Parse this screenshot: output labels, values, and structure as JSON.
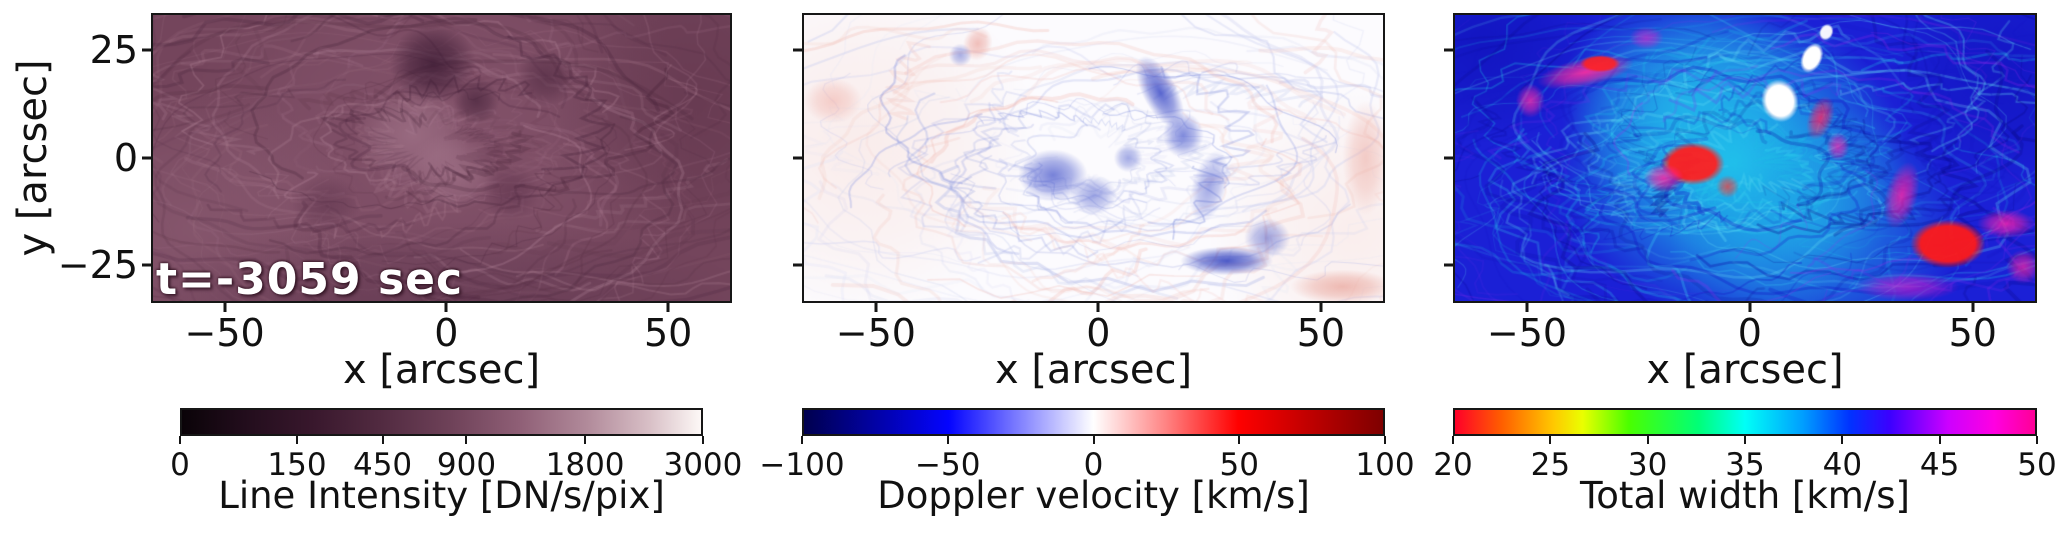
{
  "figure": {
    "background": "#ffffff",
    "axis_color": "#161616",
    "ylabel": "y [arcsec]",
    "annotation": "t=-3059 sec"
  },
  "chart_data": [
    {
      "type": "heatmap",
      "name": "line-intensity-map",
      "xlabel": "x [arcsec]",
      "ylabel": "y [arcsec]",
      "x_ticks": [
        -50,
        0,
        50
      ],
      "y_ticks": [
        25,
        0,
        -25
      ],
      "x_range": [
        -66.6,
        64.4
      ],
      "y_range": [
        -33.8,
        33.6
      ],
      "show_y_tick_labels": true,
      "annotation": "t=-3059 sec",
      "colorbar": {
        "label": "Line Intensity [DN/s/pix]",
        "ticks": [
          0,
          150,
          450,
          900,
          1800,
          3000
        ],
        "range": [
          0,
          3000
        ],
        "scale": "sqrt",
        "shrink": 0.9,
        "stops": [
          [
            0,
            "#0a0308"
          ],
          [
            0.12,
            "#220d1c"
          ],
          [
            0.25,
            "#38172c"
          ],
          [
            0.38,
            "#512a40"
          ],
          [
            0.52,
            "#6f4259"
          ],
          [
            0.65,
            "#8f5f76"
          ],
          [
            0.78,
            "#b18a9a"
          ],
          [
            0.9,
            "#d8bfc6"
          ],
          [
            1,
            "#fdf8f6"
          ]
        ]
      },
      "texture": {
        "seed": 11,
        "base": "#74455c",
        "glows": [
          {
            "x": 0.5,
            "y": 0.42,
            "rx": 0.45,
            "ry": 0.75,
            "c": "#8d5c74",
            "a": 0.6
          },
          {
            "x": 0.07,
            "y": 0.75,
            "rx": 0.3,
            "ry": 0.5,
            "c": "#9a6a80",
            "a": 0.45
          },
          {
            "x": 0.93,
            "y": 0.3,
            "rx": 0.25,
            "ry": 0.5,
            "c": "#5c3148",
            "a": 0.5
          },
          {
            "x": 0.5,
            "y": 1.02,
            "rx": 0.55,
            "ry": 0.3,
            "c": "#5f3750",
            "a": 0.55
          },
          {
            "x": 0.45,
            "y": 0.42,
            "rx": 0.1,
            "ry": 0.18,
            "c": "#a87b90",
            "a": 0.6
          },
          {
            "x": 0.52,
            "y": 0.55,
            "rx": 0.08,
            "ry": 0.14,
            "c": "#b08398",
            "a": 0.5
          }
        ],
        "arcs": [
          {
            "count": 110,
            "colors": [
              "#a9798e",
              "#9b6c82",
              "#b98da0"
            ],
            "a": [
              0.08,
              0.28
            ],
            "w": [
              1,
              3.5
            ],
            "r": [
              0.08,
              0.85
            ],
            "grow": [
              0.4,
              1.5
            ],
            "cx": 0.48,
            "cy": 0.46
          },
          {
            "count": 90,
            "colors": [
              "#4f2940",
              "#5d3349",
              "#3f1d33"
            ],
            "a": [
              0.1,
              0.3
            ],
            "w": [
              1,
              4
            ],
            "r": [
              0.1,
              0.95
            ],
            "grow": [
              0.4,
              1.4
            ],
            "cx": 0.48,
            "cy": 0.46
          }
        ],
        "blobs": [
          {
            "x": 0.485,
            "y": 0.17,
            "rx": 0.075,
            "ry": 0.14,
            "c": "#371730",
            "a": 0.75
          },
          {
            "x": 0.56,
            "y": 0.3,
            "rx": 0.04,
            "ry": 0.08,
            "c": "#401e36",
            "a": 0.6
          },
          {
            "x": 0.68,
            "y": 0.22,
            "rx": 0.05,
            "ry": 0.1,
            "c": "#49243c",
            "a": 0.55
          },
          {
            "x": 0.3,
            "y": 0.66,
            "rx": 0.06,
            "ry": 0.1,
            "c": "#5a3049",
            "a": 0.5
          },
          {
            "x": 0.62,
            "y": 0.62,
            "rx": 0.05,
            "ry": 0.1,
            "c": "#542a44",
            "a": 0.45
          }
        ]
      }
    },
    {
      "type": "heatmap",
      "name": "doppler-velocity-map",
      "xlabel": "x [arcsec]",
      "x_ticks": [
        -50,
        0,
        50
      ],
      "y_ticks": [
        25,
        0,
        -25
      ],
      "x_range": [
        -66.6,
        64.4
      ],
      "y_range": [
        -33.8,
        33.6
      ],
      "show_y_tick_labels": false,
      "colorbar": {
        "label": "Doppler velocity [km/s]",
        "ticks": [
          -100,
          -50,
          0,
          50,
          100
        ],
        "range": [
          -100,
          100
        ],
        "scale": "linear",
        "shrink": 1,
        "stops": [
          [
            0,
            "#00004e"
          ],
          [
            0.25,
            "#0404ff"
          ],
          [
            0.375,
            "#8383ff"
          ],
          [
            0.5,
            "#ffffff"
          ],
          [
            0.625,
            "#ff8383"
          ],
          [
            0.75,
            "#ff0000"
          ],
          [
            1,
            "#7e0000"
          ]
        ]
      },
      "texture": {
        "seed": 23,
        "base": "#fcfbfe",
        "glows": [
          {
            "x": 0.1,
            "y": 0.45,
            "rx": 0.3,
            "ry": 0.6,
            "c": "#f7ded9",
            "a": 0.5
          },
          {
            "x": 0.95,
            "y": 0.75,
            "rx": 0.25,
            "ry": 0.5,
            "c": "#f8ded8",
            "a": 0.45
          }
        ],
        "arcs": [
          {
            "count": 80,
            "colors": [
              "#c8cdf0",
              "#b4bbe9",
              "#dfe2f6"
            ],
            "a": [
              0.15,
              0.4
            ],
            "w": [
              1,
              3
            ],
            "r": [
              0.1,
              0.95
            ],
            "grow": [
              0.4,
              1.4
            ],
            "cx": 0.5,
            "cy": 0.5
          },
          {
            "count": 45,
            "colors": [
              "#f4c4bd",
              "#f0b4ab"
            ],
            "a": [
              0.12,
              0.3
            ],
            "w": [
              1.5,
              4
            ],
            "r": [
              0.35,
              1.05
            ],
            "grow": [
              0.3,
              1
            ],
            "cx": 0.5,
            "cy": 0.5
          },
          {
            "count": 30,
            "colors": [
              "#6d7dd8",
              "#8b98e2"
            ],
            "a": [
              0.15,
              0.35
            ],
            "w": [
              1,
              2.5
            ],
            "r": [
              0.12,
              0.55
            ],
            "grow": [
              0.3,
              1
            ],
            "cx": 0.52,
            "cy": 0.5
          }
        ],
        "blobs": [
          {
            "x": 0.615,
            "y": 0.27,
            "rx": 0.03,
            "ry": 0.14,
            "c": "#3242c4",
            "a": 0.8,
            "rot": -28
          },
          {
            "x": 0.655,
            "y": 0.42,
            "rx": 0.035,
            "ry": 0.08,
            "c": "#3f50ca",
            "a": 0.65
          },
          {
            "x": 0.43,
            "y": 0.56,
            "rx": 0.06,
            "ry": 0.09,
            "c": "#3e4ec9",
            "a": 0.7
          },
          {
            "x": 0.5,
            "y": 0.63,
            "rx": 0.04,
            "ry": 0.07,
            "c": "#5564cf",
            "a": 0.55
          },
          {
            "x": 0.56,
            "y": 0.5,
            "rx": 0.025,
            "ry": 0.05,
            "c": "#4a5acc",
            "a": 0.5
          },
          {
            "x": 0.7,
            "y": 0.6,
            "rx": 0.03,
            "ry": 0.13,
            "c": "#4756cb",
            "a": 0.5,
            "rot": 15
          },
          {
            "x": 0.73,
            "y": 0.86,
            "rx": 0.08,
            "ry": 0.05,
            "c": "#2334bb",
            "a": 0.8
          },
          {
            "x": 0.8,
            "y": 0.78,
            "rx": 0.04,
            "ry": 0.07,
            "c": "#4152c8",
            "a": 0.5
          },
          {
            "x": 0.97,
            "y": 0.5,
            "rx": 0.04,
            "ry": 0.2,
            "c": "#eba49a",
            "a": 0.5
          },
          {
            "x": 0.93,
            "y": 0.95,
            "rx": 0.09,
            "ry": 0.06,
            "c": "#e69488",
            "a": 0.6
          },
          {
            "x": 0.05,
            "y": 0.3,
            "rx": 0.05,
            "ry": 0.08,
            "c": "#efaaa1",
            "a": 0.5
          },
          {
            "x": 0.3,
            "y": 0.1,
            "rx": 0.025,
            "ry": 0.06,
            "c": "#e9988f",
            "a": 0.6,
            "rot": 20
          },
          {
            "x": 0.27,
            "y": 0.14,
            "rx": 0.02,
            "ry": 0.04,
            "c": "#5766cf",
            "a": 0.5
          }
        ]
      }
    },
    {
      "type": "heatmap",
      "name": "total-width-map",
      "xlabel": "x [arcsec]",
      "x_ticks": [
        -50,
        0,
        50
      ],
      "y_ticks": [
        25,
        0,
        -25
      ],
      "x_range": [
        -66.6,
        64.4
      ],
      "y_range": [
        -33.8,
        33.6
      ],
      "show_y_tick_labels": false,
      "colorbar": {
        "label": "Total width [km/s]",
        "ticks": [
          20,
          25,
          30,
          35,
          40,
          45,
          50
        ],
        "range": [
          20,
          50
        ],
        "scale": "linear",
        "shrink": 1,
        "stops": [
          [
            0,
            "#ff0029"
          ],
          [
            0.08,
            "#ff5e00"
          ],
          [
            0.17,
            "#ffc800"
          ],
          [
            0.22,
            "#eaff00"
          ],
          [
            0.3,
            "#4aff00"
          ],
          [
            0.42,
            "#00ff78"
          ],
          [
            0.5,
            "#00fff7"
          ],
          [
            0.6,
            "#009eff"
          ],
          [
            0.68,
            "#0033ff"
          ],
          [
            0.75,
            "#3c00ff"
          ],
          [
            0.85,
            "#cc00ff"
          ],
          [
            0.93,
            "#ff00e1"
          ],
          [
            1,
            "#ff0096"
          ]
        ]
      },
      "texture": {
        "seed": 37,
        "base": "#1b20d6",
        "glows": [
          {
            "x": 0.48,
            "y": 0.52,
            "rx": 0.3,
            "ry": 0.55,
            "c": "#1fd0ee",
            "a": 0.85
          },
          {
            "x": 0.4,
            "y": 0.3,
            "rx": 0.22,
            "ry": 0.4,
            "c": "#25d2ee",
            "a": 0.6
          },
          {
            "x": 0.62,
            "y": 0.75,
            "rx": 0.25,
            "ry": 0.45,
            "c": "#22c8ea",
            "a": 0.55
          },
          {
            "x": 0.05,
            "y": 0.1,
            "rx": 0.2,
            "ry": 0.35,
            "c": "#0d0fb4",
            "a": 0.6
          },
          {
            "x": 0.95,
            "y": 0.2,
            "rx": 0.2,
            "ry": 0.4,
            "c": "#0e10b8",
            "a": 0.55
          }
        ],
        "arcs": [
          {
            "count": 120,
            "colors": [
              "#3cdcf4",
              "#1ec0e8",
              "#6ae8f8"
            ],
            "a": [
              0.1,
              0.3
            ],
            "w": [
              1,
              3
            ],
            "r": [
              0.08,
              0.75
            ],
            "grow": [
              0.4,
              1.5
            ],
            "cx": 0.5,
            "cy": 0.52
          },
          {
            "count": 100,
            "colors": [
              "#0c0da8",
              "#1517c6",
              "#090a8e"
            ],
            "a": [
              0.12,
              0.35
            ],
            "w": [
              1,
              4
            ],
            "r": [
              0.15,
              1.05
            ],
            "grow": [
              0.4,
              1.4
            ],
            "cx": 0.5,
            "cy": 0.52
          },
          {
            "count": 40,
            "colors": [
              "#7b2cf0",
              "#a428f0"
            ],
            "a": [
              0.08,
              0.25
            ],
            "w": [
              1,
              3
            ],
            "r": [
              0.35,
              1.05
            ],
            "grow": [
              0.3,
              1.2
            ],
            "cx": 0.5,
            "cy": 0.52
          }
        ],
        "blobs": [
          {
            "x": 0.225,
            "y": 0.2,
            "rx": 0.085,
            "ry": 0.05,
            "c": "#ff2d9e",
            "a": 0.9,
            "rot": -12
          },
          {
            "x": 0.25,
            "y": 0.17,
            "rx": 0.035,
            "ry": 0.03,
            "c": "#ff2222",
            "a": 0.9,
            "hard": true
          },
          {
            "x": 0.13,
            "y": 0.3,
            "rx": 0.025,
            "ry": 0.06,
            "c": "#ff2da6",
            "a": 0.75
          },
          {
            "x": 0.33,
            "y": 0.08,
            "rx": 0.03,
            "ry": 0.04,
            "c": "#e520c8",
            "a": 0.6
          },
          {
            "x": 0.41,
            "y": 0.52,
            "rx": 0.055,
            "ry": 0.075,
            "c": "#ff2020",
            "a": 0.95,
            "hard": true
          },
          {
            "x": 0.36,
            "y": 0.57,
            "rx": 0.035,
            "ry": 0.05,
            "c": "#ff28a8",
            "a": 0.85
          },
          {
            "x": 0.47,
            "y": 0.6,
            "rx": 0.02,
            "ry": 0.04,
            "c": "#ff3030",
            "a": 0.7
          },
          {
            "x": 0.63,
            "y": 0.36,
            "rx": 0.022,
            "ry": 0.08,
            "c": "#ff2566",
            "a": 0.8,
            "rot": 20
          },
          {
            "x": 0.66,
            "y": 0.46,
            "rx": 0.02,
            "ry": 0.05,
            "c": "#ff28b0",
            "a": 0.7
          },
          {
            "x": 0.77,
            "y": 0.63,
            "rx": 0.028,
            "ry": 0.12,
            "c": "#ff1fa5",
            "a": 0.8,
            "rot": 15
          },
          {
            "x": 0.85,
            "y": 0.8,
            "rx": 0.065,
            "ry": 0.085,
            "c": "#ff1a1a",
            "a": 0.95,
            "hard": true
          },
          {
            "x": 0.95,
            "y": 0.73,
            "rx": 0.05,
            "ry": 0.05,
            "c": "#ff22aa",
            "a": 0.8
          },
          {
            "x": 0.78,
            "y": 0.95,
            "rx": 0.09,
            "ry": 0.05,
            "c": "#d518c8",
            "a": 0.65
          },
          {
            "x": 0.98,
            "y": 0.88,
            "rx": 0.03,
            "ry": 0.06,
            "c": "#ff25a0",
            "a": 0.7
          },
          {
            "x": 0.56,
            "y": 0.3,
            "rx": 0.032,
            "ry": 0.075,
            "c": "#ffffff",
            "a": 1,
            "hard": true,
            "rot": -15
          },
          {
            "x": 0.615,
            "y": 0.15,
            "rx": 0.018,
            "ry": 0.055,
            "c": "#ffffff",
            "a": 1,
            "hard": true,
            "rot": 25
          },
          {
            "x": 0.64,
            "y": 0.06,
            "rx": 0.012,
            "ry": 0.03,
            "c": "#ffffff",
            "a": 0.95,
            "hard": true,
            "rot": 25
          }
        ]
      }
    }
  ]
}
